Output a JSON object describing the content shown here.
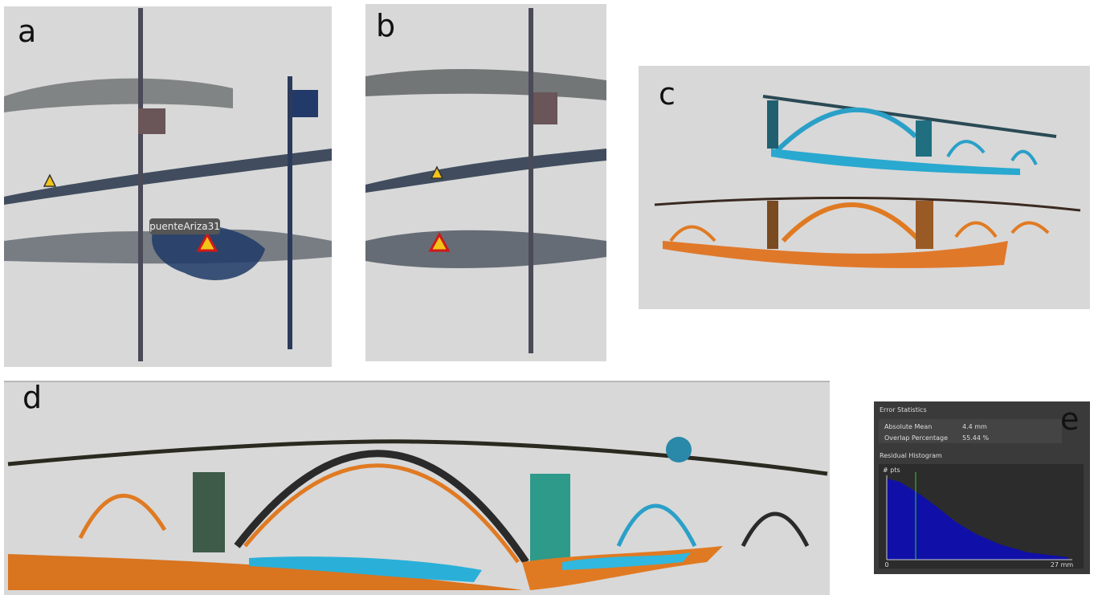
{
  "panels": {
    "a": {
      "label": "a",
      "tooltip": "puenteAriza31"
    },
    "b": {
      "label": "b"
    },
    "c": {
      "label": "c"
    },
    "d": {
      "label": "d"
    },
    "e": {
      "label": "e",
      "title": "Error Statistics",
      "rows": [
        [
          "Absolute Mean",
          "4.4 mm"
        ],
        [
          "Overlap Percentage",
          "55.44 %"
        ]
      ],
      "histogram_title": "Residual Histogram",
      "y_label": "# pts",
      "x_min_label": "0",
      "x_max_label": "27 mm"
    }
  }
}
